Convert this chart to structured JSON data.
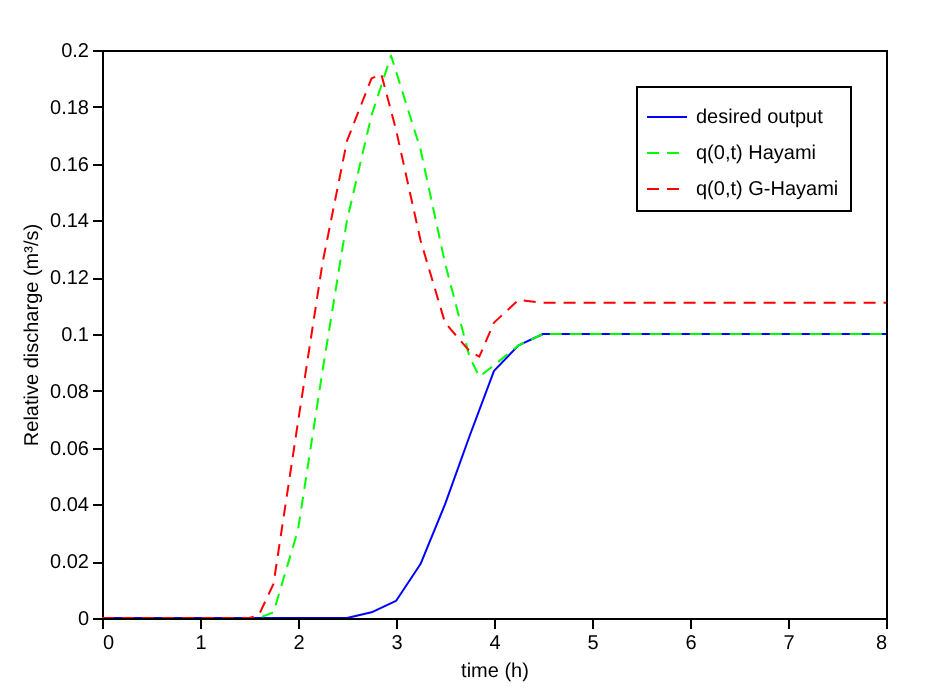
{
  "chart_data": {
    "type": "line",
    "xlabel": "time (h)",
    "ylabel": "Relative discharge (m³/s)",
    "xlim": [
      0,
      8
    ],
    "xticks": [
      0,
      1,
      2,
      3,
      4,
      5,
      6,
      7,
      8
    ],
    "ylim": [
      0,
      0.2
    ],
    "yticks": [
      0,
      0.02,
      0.04,
      0.06,
      0.08,
      0.1,
      0.12,
      0.14,
      0.16,
      0.18,
      0.2
    ],
    "grid": false,
    "legend": "top right",
    "series": [
      {
        "name": "desired output",
        "color": "#0000ff",
        "line_style": "solid",
        "x": [
          0,
          2.5,
          2.75,
          3,
          3.25,
          3.5,
          3.75,
          4,
          4.25,
          4.5,
          5,
          8
        ],
        "values": [
          0,
          0,
          0.002,
          0.006,
          0.019,
          0.04,
          0.064,
          0.087,
          0.096,
          0.1,
          0.1,
          0.1
        ]
      },
      {
        "name": "q(0,t) Hayami",
        "color": "#00ff00",
        "line_style": "dashed",
        "x": [
          0,
          1.6,
          1.75,
          2,
          2.25,
          2.5,
          2.75,
          2.95,
          3.25,
          3.5,
          3.75,
          3.85,
          4,
          4.25,
          4.5,
          5,
          8
        ],
        "values": [
          0,
          0,
          0.002,
          0.031,
          0.087,
          0.14,
          0.177,
          0.198,
          0.165,
          0.125,
          0.092,
          0.085,
          0.089,
          0.096,
          0.1,
          0.1,
          0.1
        ]
      },
      {
        "name": "q(0,t) G-Hayami",
        "color": "#ff0000",
        "line_style": "dashed",
        "x": [
          0,
          1.5,
          1.6,
          1.75,
          2,
          2.25,
          2.5,
          2.75,
          2.85,
          3,
          3.25,
          3.5,
          3.75,
          3.85,
          4,
          4.25,
          4.5,
          8
        ],
        "values": [
          0,
          0,
          0.001,
          0.012,
          0.069,
          0.125,
          0.168,
          0.19,
          0.1915,
          0.172,
          0.133,
          0.104,
          0.094,
          0.092,
          0.104,
          0.112,
          0.111,
          0.111
        ]
      }
    ]
  }
}
